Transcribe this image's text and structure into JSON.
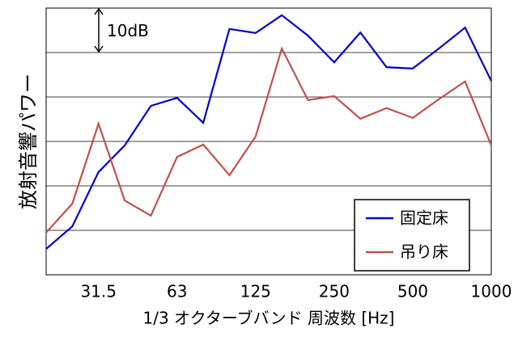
{
  "chart_data": {
    "type": "line",
    "ylabel": "放射音響パワー",
    "xlabel": "1/3 オクターブバンド 周波数 [Hz]",
    "annotation": "10dB",
    "categories": [
      null,
      null,
      "31.5",
      null,
      null,
      "63",
      null,
      null,
      "125",
      null,
      null,
      "250",
      null,
      null,
      "500",
      null,
      null,
      "1000"
    ],
    "series": [
      {
        "name": "固定床",
        "color": "#0000cc",
        "values": [
          5.8,
          10.9,
          23.1,
          29.1,
          38.0,
          39.8,
          34.2,
          55.3,
          54.4,
          58.4,
          53.8,
          47.8,
          54.5,
          46.7,
          46.4,
          50.9,
          55.6,
          43.6
        ]
      },
      {
        "name": "吊り床",
        "color": "#c0504d",
        "values": [
          9.5,
          16.0,
          34.0,
          16.7,
          13.3,
          26.5,
          29.3,
          22.4,
          31.1,
          50.9,
          39.3,
          40.2,
          35.1,
          37.5,
          35.3,
          39.5,
          43.5,
          29.1
        ]
      }
    ],
    "ylim": [
      0,
      60
    ],
    "yticks": [
      10,
      20,
      30,
      40,
      50
    ],
    "grid": true,
    "legend": "lower right"
  }
}
